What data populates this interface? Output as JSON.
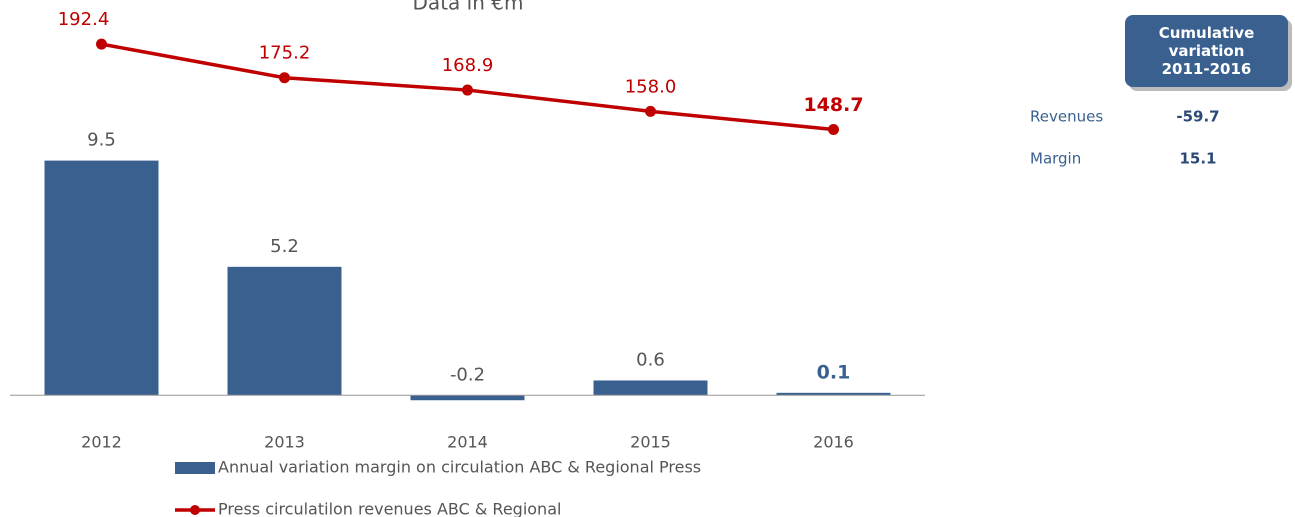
{
  "chart_data": {
    "type": "bar",
    "subtitle": "Data in €m",
    "categories": [
      "2012",
      "2013",
      "2014",
      "2015",
      "2016"
    ],
    "series": [
      {
        "name": "Annual variation margin on circulation ABC & Regional Press",
        "type": "bar",
        "color": "#3a6090",
        "values": [
          9.5,
          5.2,
          -0.2,
          0.6,
          0.1
        ]
      },
      {
        "name": "Press circulatilon revenues ABC & Regional",
        "type": "line",
        "axis": "y2",
        "color": "#c00000",
        "values": [
          192.4,
          175.2,
          168.9,
          158.0,
          148.7
        ],
        "value_labels": [
          "192.4",
          "175.2",
          "168.9",
          "158.0",
          "148.7"
        ]
      }
    ],
    "ylim": [
      -1,
      16
    ],
    "y2lim": [
      0,
      215
    ],
    "highlight_last": true,
    "legend": "bottom",
    "side_table": {
      "header": "Cumulative variation 2011-2016",
      "rows": [
        [
          "Revenues",
          -59.7
        ],
        [
          "Margin",
          15.1
        ]
      ]
    }
  }
}
